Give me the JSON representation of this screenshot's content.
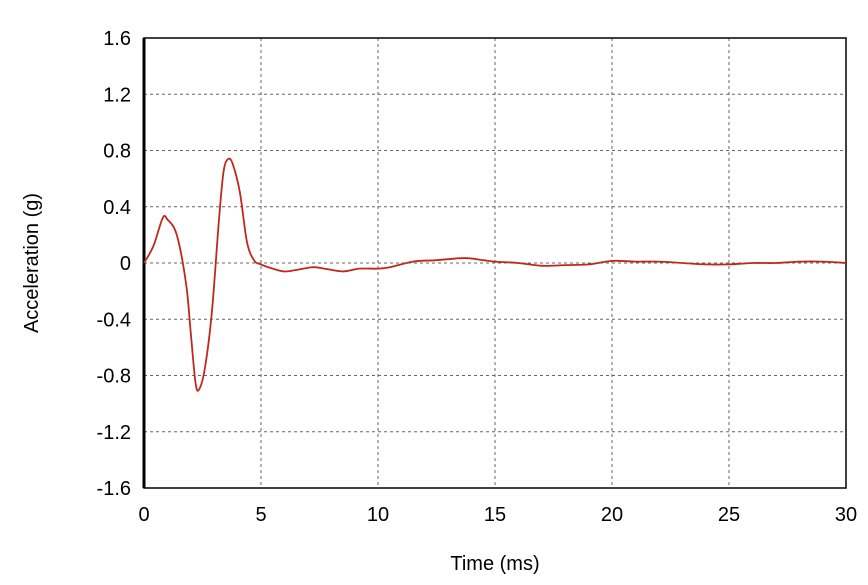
{
  "chart_data": {
    "type": "line",
    "title": "",
    "xlabel": "Time (ms)",
    "ylabel": "Acceleration (g)",
    "xlim": [
      0,
      30
    ],
    "ylim": [
      -1.6,
      1.6
    ],
    "xticks": [
      0,
      5,
      10,
      15,
      20,
      25,
      30
    ],
    "yticks": [
      1.6,
      1.2,
      0.8,
      0.4,
      0,
      -0.4,
      -0.8,
      -1.2,
      -1.6
    ],
    "ytick_labels": [
      "1.6",
      "1.2",
      "0.8",
      "0.4",
      "0",
      "-0.4",
      "-0.8",
      "-1.2",
      "-1.6"
    ],
    "xtick_labels": [
      "0",
      "5",
      "10",
      "15",
      "20",
      "25",
      "30"
    ],
    "grid": true,
    "series_color": "#c0281e",
    "series": [
      {
        "x": [
          0,
          0.4,
          0.8,
          1.0,
          1.4,
          1.8,
          2.0,
          2.2,
          2.35,
          2.6,
          2.9,
          3.2,
          3.4,
          3.6,
          3.8,
          4.1,
          4.4,
          4.7,
          5,
          5.5,
          6,
          6.5,
          7.2,
          7.7,
          8.5,
          9.2,
          10,
          10.5,
          11.5,
          12.5,
          13.7,
          14.5,
          15,
          16,
          17,
          18,
          19,
          20,
          21,
          22,
          23,
          24,
          25,
          26,
          27,
          28,
          29,
          30
        ],
        "y": [
          0,
          0.12,
          0.32,
          0.31,
          0.2,
          -0.15,
          -0.5,
          -0.85,
          -0.9,
          -0.75,
          -0.35,
          0.3,
          0.65,
          0.74,
          0.7,
          0.5,
          0.15,
          0.02,
          -0.01,
          -0.04,
          -0.06,
          -0.05,
          -0.03,
          -0.04,
          -0.06,
          -0.04,
          -0.04,
          -0.03,
          0.01,
          0.02,
          0.035,
          0.02,
          0.01,
          0.0,
          -0.02,
          -0.015,
          -0.01,
          0.015,
          0.01,
          0.01,
          0.0,
          -0.01,
          -0.01,
          0.0,
          0.0,
          0.01,
          0.01,
          0.0
        ]
      }
    ]
  }
}
